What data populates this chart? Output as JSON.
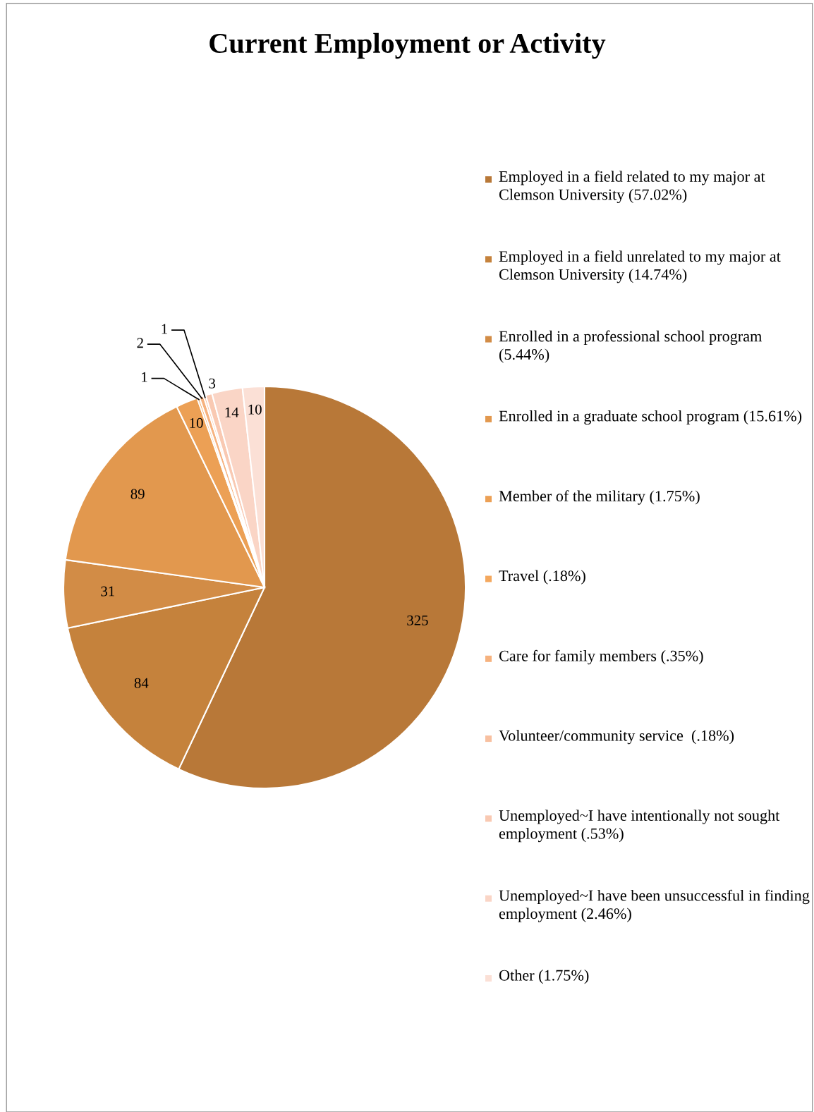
{
  "chart_data": {
    "type": "pie",
    "title": "Current Employment or Activity",
    "categories": [
      "Employed in a field related to my major at Clemson University (57.02%)",
      "Employed in a field unrelated to my major at Clemson University (14.74%)",
      "Enrolled in a professional school program (5.44%)",
      "Enrolled in a graduate school program (15.61%)",
      "Member of the military (1.75%)",
      "Travel (.18%)",
      "Care for family members (.35%)",
      "Volunteer/community service  (.18%)",
      "Unemployed~I have intentionally not sought employment (.53%)",
      "Unemployed~I have been unsuccessful in finding employment (2.46%)",
      "Other (1.75%)"
    ],
    "values": [
      325,
      84,
      31,
      89,
      10,
      1,
      2,
      1,
      3,
      14,
      10
    ],
    "colors": [
      "#b87838",
      "#c5823c",
      "#d28c46",
      "#e2984e",
      "#eca055",
      "#f4a85e",
      "#f6b27e",
      "#f8c0a0",
      "#f9c9b2",
      "#fad5c6",
      "#fbe0d6"
    ],
    "data_labels": true,
    "legend": "right"
  }
}
